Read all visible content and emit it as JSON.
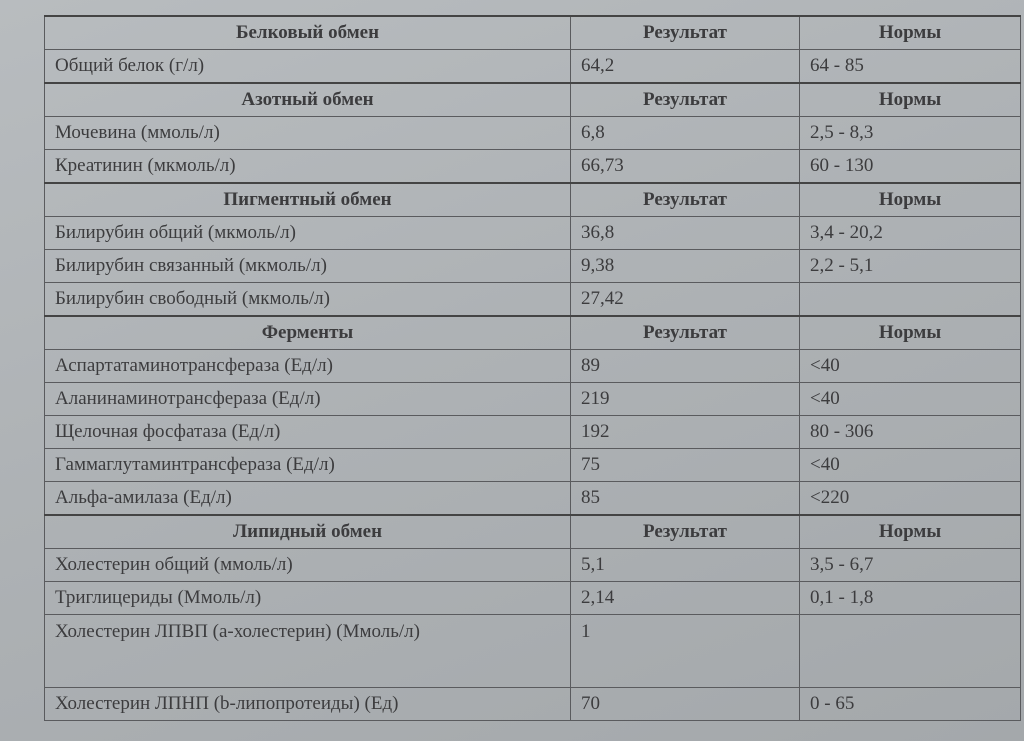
{
  "sections": [
    {
      "title": "Белковый обмен",
      "result_label": "Результат",
      "norm_label": "Нормы",
      "rows": [
        {
          "name": "Общий белок (г/л)",
          "result": "64,2",
          "norm": "64 - 85"
        }
      ]
    },
    {
      "title": "Азотный обмен",
      "result_label": "Результат",
      "norm_label": "Нормы",
      "rows": [
        {
          "name": "Мочевина (ммоль/л)",
          "result": "6,8",
          "norm": "2,5 - 8,3"
        },
        {
          "name": "Креатинин (мкмоль/л)",
          "result": "66,73",
          "norm": "60 - 130"
        }
      ]
    },
    {
      "title": "Пигментный обмен",
      "result_label": "Результат",
      "norm_label": "Нормы",
      "rows": [
        {
          "name": "Билирубин общий (мкмоль/л)",
          "result": "36,8",
          "norm": "3,4 - 20,2"
        },
        {
          "name": "Билирубин связанный (мкмоль/л)",
          "result": "9,38",
          "norm": "2,2 - 5,1"
        },
        {
          "name": "Билирубин свободный (мкмоль/л)",
          "result": "27,42",
          "norm": ""
        }
      ]
    },
    {
      "title": "Ферменты",
      "result_label": "Результат",
      "norm_label": "Нормы",
      "rows": [
        {
          "name": "Аспартатаминотрансфераза (Ед/л)",
          "result": "89",
          "norm": "<40"
        },
        {
          "name": "Аланинаминотрансфераза (Ед/л)",
          "result": "219",
          "norm": "<40"
        },
        {
          "name": "Щелочная фосфатаза (Ед/л)",
          "result": "192",
          "norm": "80 - 306"
        },
        {
          "name": "Гаммаглутаминтрансфераза (Ед/л)",
          "result": "75",
          "norm": "<40"
        },
        {
          "name": "Альфа-амилаза (Ед/л)",
          "result": "85",
          "norm": "<220"
        }
      ]
    },
    {
      "title": "Липидный обмен",
      "result_label": "Результат",
      "norm_label": "Нормы",
      "rows": [
        {
          "name": "Холестерин общий (ммоль/л)",
          "result": "5,1",
          "norm": "3,5 - 6,7"
        },
        {
          "name": "Триглицериды (Ммоль/л)",
          "result": "2,14",
          "norm": "0,1 - 1,8"
        },
        {
          "name": "Холестерин ЛПВП (а-холестерин) (Ммоль/л)",
          "result": "1",
          "norm": "",
          "tall": true
        },
        {
          "name": "Холестерин ЛПНП (b-липопротеиды) (Ед)",
          "result": "70",
          "norm": "0 - 65"
        }
      ]
    }
  ]
}
